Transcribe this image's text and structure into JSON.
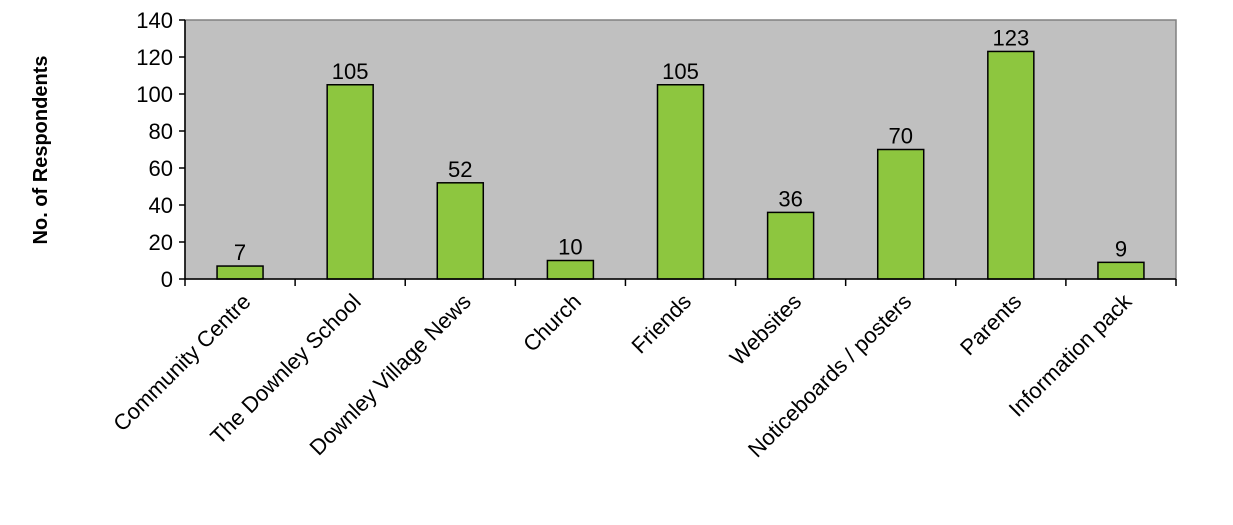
{
  "chart_data": {
    "type": "bar",
    "title": "",
    "xlabel": "",
    "ylabel": "No. of Respondents",
    "categories": [
      "Community Centre",
      "The Downley School",
      "Downley Village News",
      "Church",
      "Friends",
      "Websites",
      "Noticeboards / posters",
      "Parents",
      "Information pack"
    ],
    "values": [
      7,
      105,
      52,
      10,
      105,
      36,
      70,
      123,
      9
    ],
    "data_labels": [
      "7",
      "105",
      "52",
      "10",
      "105",
      "36",
      "70",
      "123",
      "9"
    ],
    "ylim": [
      0,
      140
    ],
    "yticks": [
      0,
      20,
      40,
      60,
      80,
      100,
      120,
      140
    ],
    "ytick_labels": [
      "0",
      "20",
      "40",
      "60",
      "80",
      "100",
      "120",
      "140"
    ],
    "grid": false,
    "legend": "none",
    "colors": {
      "bar_fill": "#8DC63F",
      "bar_stroke": "#000000",
      "plot_background": "#C0C0C0",
      "axis": "#000000"
    }
  }
}
